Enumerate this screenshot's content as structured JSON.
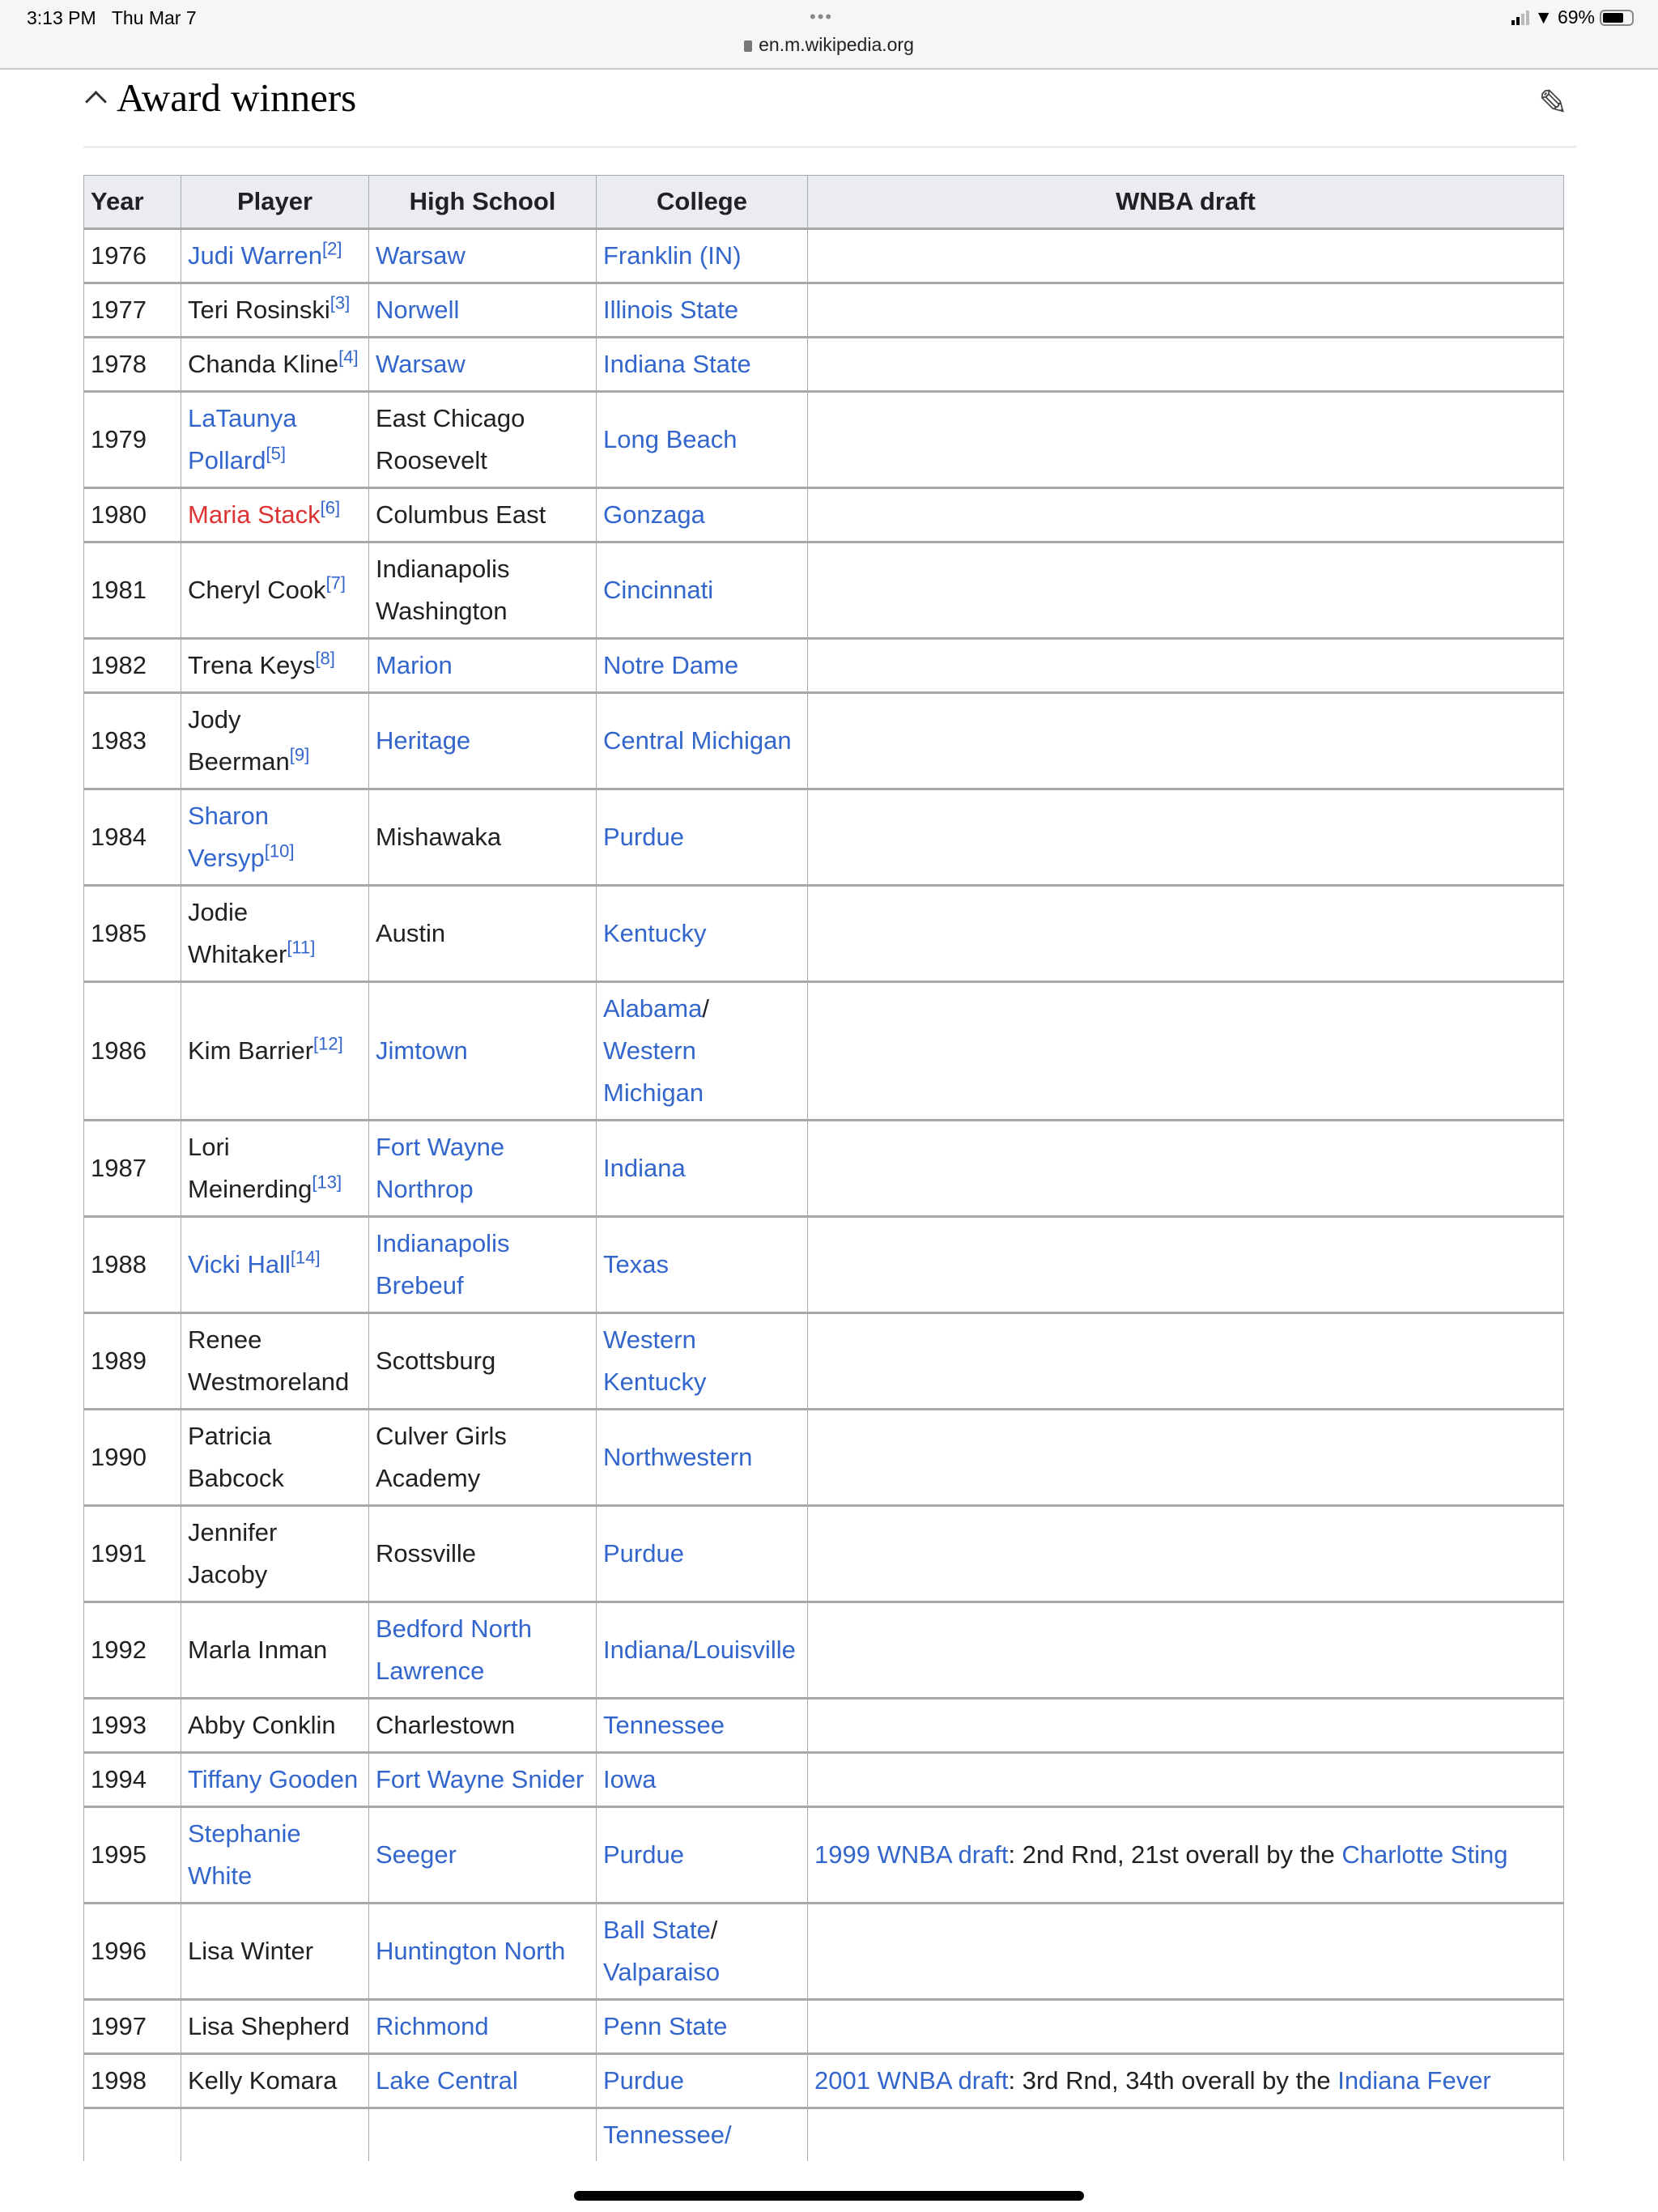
{
  "status_bar": {
    "time": "3:13 PM",
    "date": "Thu Mar 7",
    "url": "en.m.wikipedia.org",
    "battery": "69%",
    "battery_level": 0.69,
    "icons": [
      "signal-icon",
      "wifi-icon",
      "battery-icon",
      "lock-icon"
    ]
  },
  "section": {
    "title": "Award winners",
    "collapse_icon": "chevron-up-icon",
    "edit_icon": "pencil-icon"
  },
  "colors": {
    "link": "#3366cc",
    "redlink": "#dd3333",
    "header_bg": "#eaecf0"
  },
  "table": {
    "headers": [
      "Year",
      "Player",
      "High School",
      "College",
      "WNBA draft"
    ],
    "rows": [
      {
        "year": "1976",
        "player": [
          {
            "t": "Judi Warren",
            "k": "link"
          },
          {
            "t": "[2]",
            "k": "ref"
          }
        ],
        "school": [
          {
            "t": "Warsaw",
            "k": "link"
          }
        ],
        "college": [
          {
            "t": "Franklin (IN)",
            "k": "link"
          }
        ],
        "draft": []
      },
      {
        "year": "1977",
        "player": [
          {
            "t": "Teri Rosinski",
            "k": "text"
          },
          {
            "t": "[3]",
            "k": "ref"
          }
        ],
        "school": [
          {
            "t": "Norwell",
            "k": "link"
          }
        ],
        "college": [
          {
            "t": "Illinois State",
            "k": "link"
          }
        ],
        "draft": []
      },
      {
        "year": "1978",
        "player": [
          {
            "t": "Chanda Kline",
            "k": "text"
          },
          {
            "t": "[4]",
            "k": "ref"
          }
        ],
        "school": [
          {
            "t": "Warsaw",
            "k": "link"
          }
        ],
        "college": [
          {
            "t": "Indiana State",
            "k": "link"
          }
        ],
        "draft": []
      },
      {
        "year": "1979",
        "player": [
          {
            "t": "LaTaunya Pollard",
            "k": "link"
          },
          {
            "t": "[5]",
            "k": "ref"
          }
        ],
        "school": [
          {
            "t": "East Chicago Roosevelt",
            "k": "text"
          }
        ],
        "college": [
          {
            "t": "Long Beach",
            "k": "link"
          }
        ],
        "draft": []
      },
      {
        "year": "1980",
        "player": [
          {
            "t": "Maria Stack",
            "k": "red"
          },
          {
            "t": "[6]",
            "k": "ref"
          }
        ],
        "school": [
          {
            "t": "Columbus East",
            "k": "text"
          }
        ],
        "college": [
          {
            "t": "Gonzaga",
            "k": "link"
          }
        ],
        "draft": []
      },
      {
        "year": "1981",
        "player": [
          {
            "t": "Cheryl Cook",
            "k": "text"
          },
          {
            "t": "[7]",
            "k": "ref"
          }
        ],
        "school": [
          {
            "t": "Indianapolis Washington",
            "k": "text"
          }
        ],
        "college": [
          {
            "t": "Cincinnati",
            "k": "link"
          }
        ],
        "draft": []
      },
      {
        "year": "1982",
        "player": [
          {
            "t": "Trena Keys",
            "k": "text"
          },
          {
            "t": "[8]",
            "k": "ref"
          }
        ],
        "school": [
          {
            "t": "Marion",
            "k": "link"
          }
        ],
        "college": [
          {
            "t": "Notre Dame",
            "k": "link"
          }
        ],
        "draft": []
      },
      {
        "year": "1983",
        "player": [
          {
            "t": "Jody Beerman",
            "k": "text"
          },
          {
            "t": "[9]",
            "k": "ref"
          }
        ],
        "school": [
          {
            "t": "Heritage",
            "k": "link"
          }
        ],
        "college": [
          {
            "t": "Central Michigan",
            "k": "link"
          }
        ],
        "draft": []
      },
      {
        "year": "1984",
        "player": [
          {
            "t": "Sharon Versyp",
            "k": "link"
          },
          {
            "t": "[10]",
            "k": "ref"
          }
        ],
        "school": [
          {
            "t": "Mishawaka",
            "k": "text"
          }
        ],
        "college": [
          {
            "t": "Purdue",
            "k": "link"
          }
        ],
        "draft": []
      },
      {
        "year": "1985",
        "player": [
          {
            "t": "Jodie Whitaker",
            "k": "text"
          },
          {
            "t": "[11]",
            "k": "ref"
          }
        ],
        "school": [
          {
            "t": "Austin",
            "k": "text"
          }
        ],
        "college": [
          {
            "t": "Kentucky",
            "k": "link"
          }
        ],
        "draft": []
      },
      {
        "year": "1986",
        "player": [
          {
            "t": "Kim Barrier",
            "k": "text"
          },
          {
            "t": "[12]",
            "k": "ref"
          }
        ],
        "school": [
          {
            "t": "Jimtown",
            "k": "link"
          }
        ],
        "college": [
          {
            "t": "Alabama",
            "k": "link"
          },
          {
            "t": "/ ",
            "k": "text"
          },
          {
            "t": "Western Michigan",
            "k": "link"
          }
        ],
        "draft": []
      },
      {
        "year": "1987",
        "player": [
          {
            "t": "Lori Meinerding",
            "k": "text"
          },
          {
            "t": "[13]",
            "k": "ref"
          }
        ],
        "school": [
          {
            "t": "Fort Wayne Northrop",
            "k": "link"
          }
        ],
        "college": [
          {
            "t": "Indiana",
            "k": "link"
          }
        ],
        "draft": []
      },
      {
        "year": "1988",
        "player": [
          {
            "t": "Vicki Hall",
            "k": "link"
          },
          {
            "t": "[14]",
            "k": "ref"
          }
        ],
        "school": [
          {
            "t": "Indianapolis Brebeuf",
            "k": "link"
          }
        ],
        "college": [
          {
            "t": "Texas",
            "k": "link"
          }
        ],
        "draft": []
      },
      {
        "year": "1989",
        "player": [
          {
            "t": "Renee Westmoreland",
            "k": "text"
          }
        ],
        "school": [
          {
            "t": "Scottsburg",
            "k": "text"
          }
        ],
        "college": [
          {
            "t": "Western Kentucky",
            "k": "link"
          }
        ],
        "draft": []
      },
      {
        "year": "1990",
        "player": [
          {
            "t": "Patricia Babcock",
            "k": "text"
          }
        ],
        "school": [
          {
            "t": "Culver Girls Academy",
            "k": "text"
          }
        ],
        "college": [
          {
            "t": "Northwestern",
            "k": "link"
          }
        ],
        "draft": []
      },
      {
        "year": "1991",
        "player": [
          {
            "t": "Jennifer Jacoby",
            "k": "text"
          }
        ],
        "school": [
          {
            "t": "Rossville",
            "k": "text"
          }
        ],
        "college": [
          {
            "t": "Purdue",
            "k": "link"
          }
        ],
        "draft": []
      },
      {
        "year": "1992",
        "player": [
          {
            "t": "Marla Inman",
            "k": "text"
          }
        ],
        "school": [
          {
            "t": "Bedford North Lawrence",
            "k": "link"
          }
        ],
        "college": [
          {
            "t": "Indiana/Louisville",
            "k": "link"
          }
        ],
        "draft": []
      },
      {
        "year": "1993",
        "player": [
          {
            "t": "Abby Conklin",
            "k": "text"
          }
        ],
        "school": [
          {
            "t": "Charlestown",
            "k": "text"
          }
        ],
        "college": [
          {
            "t": "Tennessee",
            "k": "link"
          }
        ],
        "draft": []
      },
      {
        "year": "1994",
        "player": [
          {
            "t": "Tiffany Gooden",
            "k": "link"
          }
        ],
        "school": [
          {
            "t": "Fort Wayne Snider",
            "k": "link"
          }
        ],
        "college": [
          {
            "t": "Iowa",
            "k": "link"
          }
        ],
        "draft": []
      },
      {
        "year": "1995",
        "player": [
          {
            "t": "Stephanie White",
            "k": "link"
          }
        ],
        "school": [
          {
            "t": "Seeger",
            "k": "link"
          }
        ],
        "college": [
          {
            "t": "Purdue",
            "k": "link"
          }
        ],
        "draft": [
          {
            "t": "1999 WNBA draft",
            "k": "link"
          },
          {
            "t": ": 2nd Rnd, 21st overall by the ",
            "k": "text"
          },
          {
            "t": "Charlotte Sting",
            "k": "link"
          }
        ]
      },
      {
        "year": "1996",
        "player": [
          {
            "t": "Lisa Winter",
            "k": "text"
          }
        ],
        "school": [
          {
            "t": "Huntington North",
            "k": "link"
          }
        ],
        "college": [
          {
            "t": "Ball State",
            "k": "link"
          },
          {
            "t": "/ ",
            "k": "text"
          },
          {
            "t": "Valparaiso",
            "k": "link"
          }
        ],
        "draft": []
      },
      {
        "year": "1997",
        "player": [
          {
            "t": "Lisa Shepherd",
            "k": "text"
          }
        ],
        "school": [
          {
            "t": "Richmond",
            "k": "link"
          }
        ],
        "college": [
          {
            "t": "Penn State",
            "k": "link"
          }
        ],
        "draft": []
      },
      {
        "year": "1998",
        "player": [
          {
            "t": "Kelly Komara",
            "k": "text"
          }
        ],
        "school": [
          {
            "t": "Lake Central",
            "k": "link"
          }
        ],
        "college": [
          {
            "t": "Purdue",
            "k": "link"
          }
        ],
        "draft": [
          {
            "t": "2001 WNBA draft",
            "k": "link"
          },
          {
            "t": ": 3rd Rnd, 34th overall by the ",
            "k": "text"
          },
          {
            "t": "Indiana Fever",
            "k": "link"
          }
        ]
      },
      {
        "year": "",
        "player": [],
        "school": [],
        "college": [
          {
            "t": "Tennessee/",
            "k": "link"
          }
        ],
        "draft": []
      }
    ]
  }
}
